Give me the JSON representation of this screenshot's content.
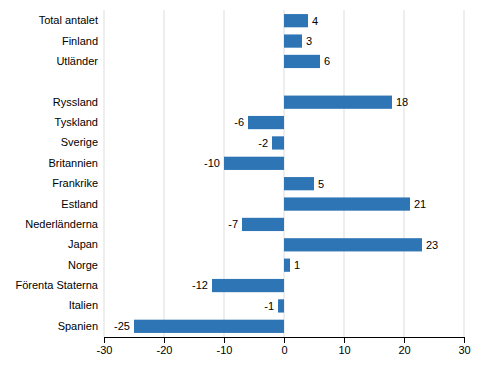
{
  "chart_data": {
    "type": "bar",
    "orientation": "horizontal",
    "categories": [
      "Total antalet",
      "Finland",
      "Utländer",
      null,
      "Ryssland",
      "Tyskland",
      "Sverige",
      "Britannien",
      "Frankrike",
      "Estland",
      "Nederländerna",
      "Japan",
      "Norge",
      "Förenta Staterna",
      "Italien",
      "Spanien"
    ],
    "values": [
      4,
      3,
      6,
      null,
      18,
      -6,
      -2,
      -10,
      5,
      21,
      -7,
      23,
      1,
      -12,
      -1,
      -25
    ],
    "color": "#2E75B6",
    "xlim": [
      -30,
      30
    ],
    "xticks": [
      -30,
      -20,
      -10,
      0,
      10,
      20,
      30
    ],
    "grid": true,
    "data_labels": true
  }
}
